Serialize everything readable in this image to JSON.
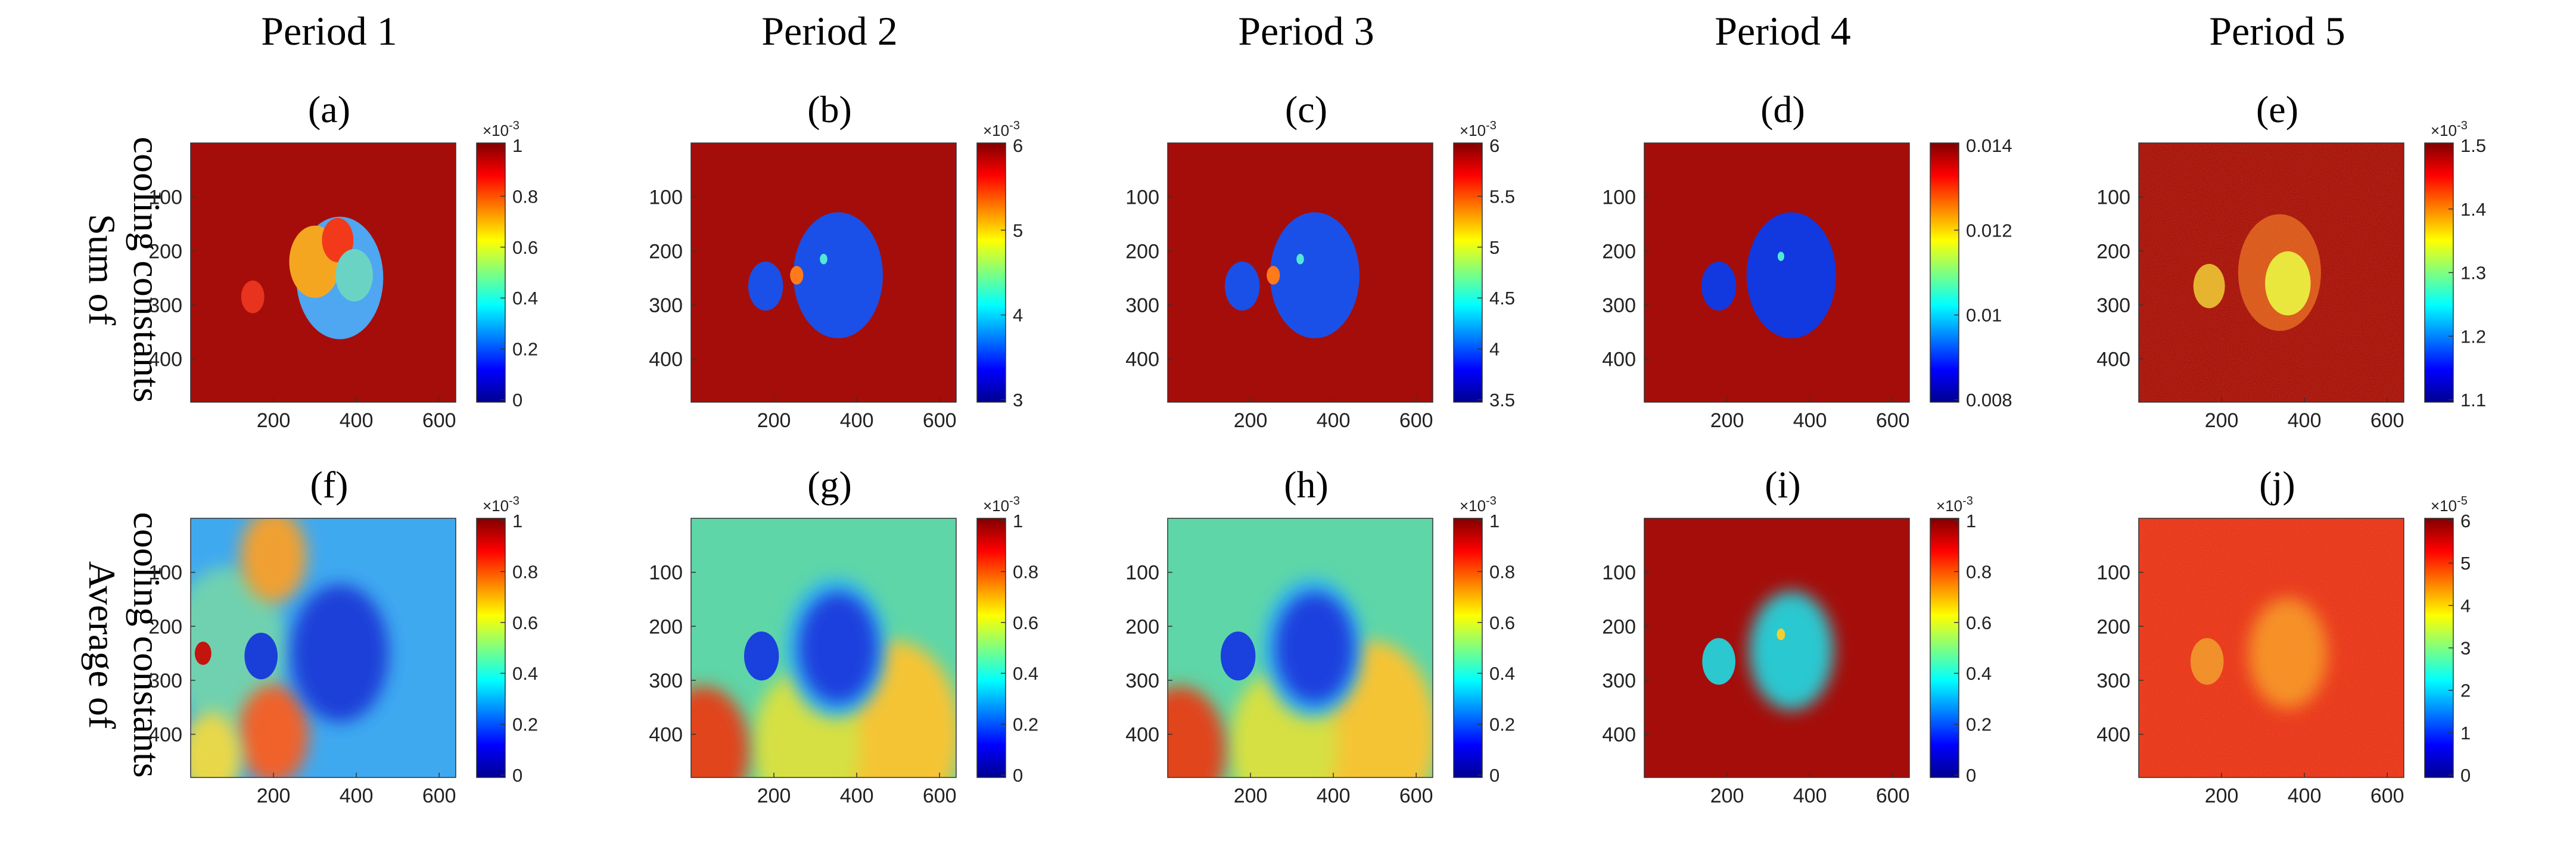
{
  "chart_data": {
    "type": "heatmap",
    "colormap": "jet",
    "image_background": "#ffffff",
    "column_titles": [
      "Period 1",
      "Period 2",
      "Period 3",
      "Period 4",
      "Period 5"
    ],
    "row_titles": [
      [
        "Sum of",
        "cooling constants"
      ],
      [
        "Average of",
        "cooling constants"
      ]
    ],
    "panels": [
      {
        "label": "(a)",
        "row": 0,
        "col": 0,
        "background": "#a50d0a",
        "xticks": [
          "200",
          "400",
          "600"
        ],
        "yticks": [
          "100",
          "200",
          "300",
          "400"
        ],
        "colorbar": {
          "exponent": "×10",
          "exponent_power": "-3",
          "ticks": [
            "1",
            "0.8",
            "0.6",
            "0.4",
            "0.2",
            "0"
          ]
        },
        "blobs": [
          {
            "x": 360,
            "y": 250,
            "r": 105,
            "color": "#4fa6f1"
          },
          {
            "x": 300,
            "y": 220,
            "r": 62,
            "color": "#f5a621"
          },
          {
            "x": 355,
            "y": 180,
            "r": 38,
            "color": "#f23a1b"
          },
          {
            "x": 395,
            "y": 245,
            "r": 45,
            "color": "#6bd3c4"
          },
          {
            "x": 150,
            "y": 285,
            "r": 28,
            "color": "#e8331e"
          }
        ]
      },
      {
        "label": "(b)",
        "row": 0,
        "col": 1,
        "background": "#a50d0a",
        "xticks": [
          "200",
          "400",
          "600"
        ],
        "yticks": [
          "100",
          "200",
          "300",
          "400"
        ],
        "colorbar": {
          "exponent": "×10",
          "exponent_power": "-3",
          "ticks": [
            "6",
            "5",
            "4",
            "3"
          ]
        },
        "blobs": [
          {
            "x": 355,
            "y": 245,
            "r": 108,
            "color": "#1a50e8"
          },
          {
            "x": 180,
            "y": 265,
            "r": 42,
            "color": "#1a50e8"
          },
          {
            "x": 255,
            "y": 245,
            "r": 16,
            "color": "#ff7a1a"
          },
          {
            "x": 320,
            "y": 215,
            "r": 9,
            "color": "#52e8d8"
          }
        ]
      },
      {
        "label": "(c)",
        "row": 0,
        "col": 2,
        "background": "#a50d0a",
        "xticks": [
          "200",
          "400",
          "600"
        ],
        "yticks": [
          "100",
          "200",
          "300",
          "400"
        ],
        "colorbar": {
          "exponent": "×10",
          "exponent_power": "-3",
          "ticks": [
            "6",
            "5.5",
            "5",
            "4.5",
            "4",
            "3.5"
          ]
        },
        "blobs": [
          {
            "x": 355,
            "y": 245,
            "r": 108,
            "color": "#1a50e8"
          },
          {
            "x": 180,
            "y": 265,
            "r": 42,
            "color": "#1a50e8"
          },
          {
            "x": 255,
            "y": 245,
            "r": 16,
            "color": "#ff7a1a"
          },
          {
            "x": 320,
            "y": 215,
            "r": 9,
            "color": "#52e8d8"
          }
        ]
      },
      {
        "label": "(d)",
        "row": 0,
        "col": 3,
        "background": "#a50d0a",
        "xticks": [
          "200",
          "400",
          "600"
        ],
        "yticks": [
          "100",
          "200",
          "300",
          "400"
        ],
        "colorbar": {
          "exponent": "",
          "exponent_power": "",
          "ticks": [
            "0.014",
            "0.012",
            "0.01",
            "0.008"
          ]
        },
        "blobs": [
          {
            "x": 355,
            "y": 245,
            "r": 108,
            "color": "#1238e0"
          },
          {
            "x": 180,
            "y": 265,
            "r": 42,
            "color": "#1238e0"
          },
          {
            "x": 330,
            "y": 210,
            "r": 8,
            "color": "#52e8d8"
          }
        ]
      },
      {
        "label": "(e)",
        "row": 0,
        "col": 4,
        "background": "#a50d0a",
        "xticks": [
          "200",
          "400",
          "600"
        ],
        "yticks": [
          "100",
          "200",
          "300",
          "400"
        ],
        "colorbar": {
          "exponent": "×10",
          "exponent_power": "-3",
          "ticks": [
            "1.5",
            "1.4",
            "1.3",
            "1.2",
            "1.1"
          ]
        },
        "blobs": [
          {
            "x": 340,
            "y": 240,
            "r": 100,
            "color": "#d9541a"
          },
          {
            "x": 170,
            "y": 265,
            "r": 38,
            "color": "#e4b02a"
          },
          {
            "x": 360,
            "y": 260,
            "r": 55,
            "color": "#e8e63a"
          }
        ]
      },
      {
        "label": "(f)",
        "row": 1,
        "col": 0,
        "background": "#3fa9f0",
        "xticks": [
          "200",
          "400",
          "600"
        ],
        "yticks": [
          "100",
          "200",
          "300",
          "400"
        ],
        "colorbar": {
          "exponent": "×10",
          "exponent_power": "-3",
          "ticks": [
            "1",
            "0.8",
            "0.6",
            "0.4",
            "0.2",
            "0"
          ]
        },
        "blobs": [
          {
            "x": 90,
            "y": 240,
            "r": 140,
            "color": "#6fd1b0"
          },
          {
            "x": 200,
            "y": 70,
            "r": 80,
            "color": "#f0a032"
          },
          {
            "x": 200,
            "y": 400,
            "r": 85,
            "color": "#f0622a"
          },
          {
            "x": 50,
            "y": 440,
            "r": 75,
            "color": "#e8d84a"
          },
          {
            "x": 360,
            "y": 250,
            "r": 118,
            "color": "#1a3fd8"
          },
          {
            "x": 170,
            "y": 255,
            "r": 40,
            "color": "#1a3fd8"
          },
          {
            "x": 30,
            "y": 250,
            "r": 20,
            "color": "#c4140f"
          }
        ]
      },
      {
        "label": "(g)",
        "row": 1,
        "col": 1,
        "background": "#5ed6a8",
        "xticks": [
          "200",
          "400",
          "600"
        ],
        "yticks": [
          "100",
          "200",
          "300",
          "400"
        ],
        "colorbar": {
          "exponent": "×10",
          "exponent_power": "-3",
          "ticks": [
            "1",
            "0.8",
            "0.6",
            "0.4",
            "0.2",
            "0"
          ]
        },
        "blobs": [
          {
            "x": 490,
            "y": 400,
            "r": 160,
            "color": "#f5c435"
          },
          {
            "x": 280,
            "y": 420,
            "r": 130,
            "color": "#d6e042"
          },
          {
            "x": 30,
            "y": 430,
            "r": 110,
            "color": "#e0451c"
          },
          {
            "x": 350,
            "y": 240,
            "r": 120,
            "color": "#36b8ef"
          },
          {
            "x": 355,
            "y": 240,
            "r": 95,
            "color": "#1a40de"
          },
          {
            "x": 170,
            "y": 255,
            "r": 42,
            "color": "#1a40de"
          }
        ]
      },
      {
        "label": "(h)",
        "row": 1,
        "col": 2,
        "background": "#5ed6a8",
        "xticks": [
          "200",
          "400",
          "600"
        ],
        "yticks": [
          "100",
          "200",
          "300",
          "400"
        ],
        "colorbar": {
          "exponent": "×10",
          "exponent_power": "-3",
          "ticks": [
            "1",
            "0.8",
            "0.6",
            "0.4",
            "0.2",
            "0"
          ]
        },
        "blobs": [
          {
            "x": 490,
            "y": 400,
            "r": 160,
            "color": "#f5c435"
          },
          {
            "x": 280,
            "y": 420,
            "r": 130,
            "color": "#d6e042"
          },
          {
            "x": 30,
            "y": 430,
            "r": 110,
            "color": "#e0451c"
          },
          {
            "x": 350,
            "y": 240,
            "r": 120,
            "color": "#36b8ef"
          },
          {
            "x": 355,
            "y": 240,
            "r": 95,
            "color": "#1a40de"
          },
          {
            "x": 170,
            "y": 255,
            "r": 42,
            "color": "#1a40de"
          }
        ]
      },
      {
        "label": "(i)",
        "row": 1,
        "col": 3,
        "background": "#a50d0a",
        "xticks": [
          "200",
          "400",
          "600"
        ],
        "yticks": [
          "100",
          "200",
          "300",
          "400"
        ],
        "colorbar": {
          "exponent": "×10",
          "exponent_power": "-3",
          "ticks": [
            "1",
            "0.8",
            "0.6",
            "0.4",
            "0.2",
            "0"
          ]
        },
        "blobs": [
          {
            "x": 355,
            "y": 245,
            "r": 102,
            "color": "#2bc8d0"
          },
          {
            "x": 180,
            "y": 265,
            "r": 40,
            "color": "#2bc8d0"
          },
          {
            "x": 330,
            "y": 215,
            "r": 10,
            "color": "#f0d030"
          }
        ]
      },
      {
        "label": "(j)",
        "row": 1,
        "col": 4,
        "background": "#e8311a",
        "xticks": [
          "200",
          "400",
          "600"
        ],
        "yticks": [
          "100",
          "200",
          "300",
          "400"
        ],
        "colorbar": {
          "exponent": "×10",
          "exponent_power": "-5",
          "ticks": [
            "6",
            "5",
            "4",
            "3",
            "2",
            "1",
            "0"
          ]
        },
        "blobs": [
          {
            "x": 360,
            "y": 250,
            "r": 95,
            "color": "#f58a22"
          },
          {
            "x": 165,
            "y": 265,
            "r": 40,
            "color": "#f08a26"
          }
        ]
      }
    ],
    "axis_ranges": {
      "x": [
        0,
        640
      ],
      "y": [
        0,
        480
      ]
    },
    "grid": false,
    "legend": "colorbar-right"
  }
}
